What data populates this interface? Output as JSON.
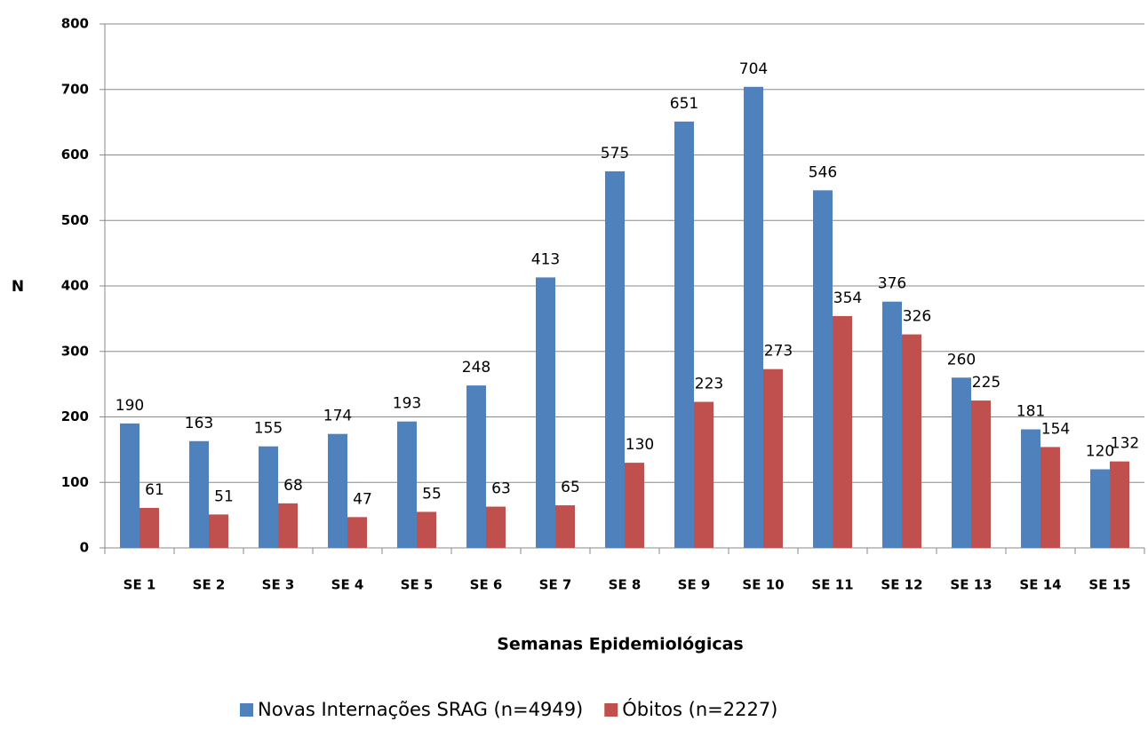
{
  "chart_data": {
    "type": "bar",
    "categories": [
      "SE 1",
      "SE 2",
      "SE 3",
      "SE 4",
      "SE 5",
      "SE 6",
      "SE 7",
      "SE 8",
      "SE 9",
      "SE 10",
      "SE 11",
      "SE 12",
      "SE 13",
      "SE 14",
      "SE 15"
    ],
    "series": [
      {
        "name": "Novas Internações SRAG (n=4949)",
        "color": "#4f81bd",
        "values": [
          190,
          163,
          155,
          174,
          193,
          248,
          413,
          575,
          651,
          704,
          546,
          376,
          260,
          181,
          120
        ]
      },
      {
        "name": "Óbitos (n=2227)",
        "color": "#c0504d",
        "values": [
          61,
          51,
          68,
          47,
          55,
          63,
          65,
          130,
          223,
          273,
          354,
          326,
          225,
          154,
          132
        ]
      }
    ],
    "x_label": "Semanas Epidemiológicas",
    "y_label": "N",
    "ylim": [
      0,
      800
    ],
    "yticks": [
      0,
      100,
      200,
      300,
      400,
      500,
      600,
      700,
      800
    ],
    "grid": true,
    "legend": "bottom"
  }
}
